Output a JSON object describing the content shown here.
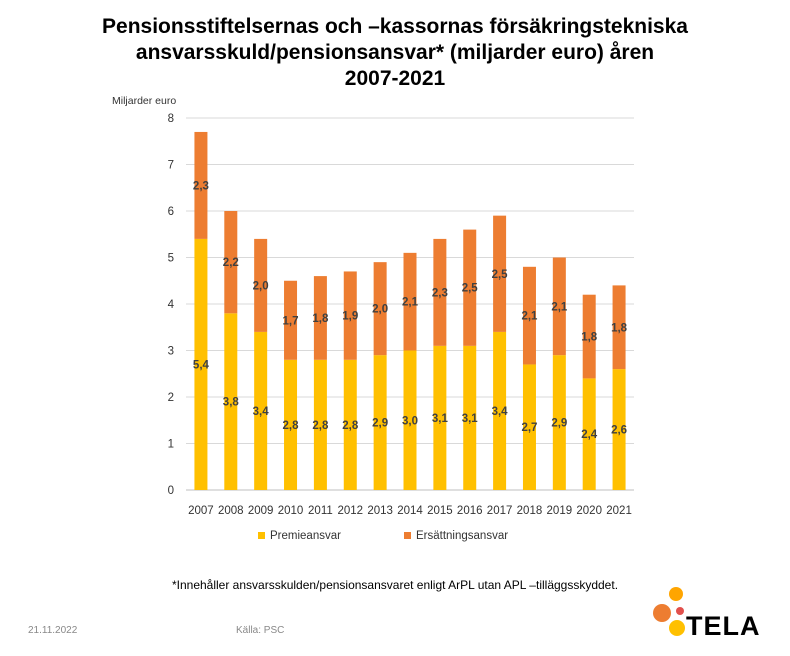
{
  "chart_data": {
    "type": "bar",
    "stacked": true,
    "title_lines": [
      "Pensionsstiftelsernas och –kassornas försäkringstekniska",
      "ansvarsskuld/pensionsansvar* (miljarder euro) åren",
      "2007-2021"
    ],
    "ylabel": "Miljarder euro",
    "categories": [
      "2007",
      "2008",
      "2009",
      "2010",
      "2011",
      "2012",
      "2013",
      "2014",
      "2015",
      "2016",
      "2017",
      "2018",
      "2019",
      "2020",
      "2021"
    ],
    "series": [
      {
        "name": "Premieansvar",
        "color": "#FFC000",
        "values": [
          5.4,
          3.8,
          3.4,
          2.8,
          2.8,
          2.8,
          2.9,
          3.0,
          3.1,
          3.1,
          3.4,
          2.7,
          2.9,
          2.4,
          2.6
        ],
        "labels": [
          "5,4",
          "3,8",
          "3,4",
          "2,8",
          "2,8",
          "2,8",
          "2,9",
          "3,0",
          "3,1",
          "3,1",
          "3,4",
          "2,7",
          "2,9",
          "2,4",
          "2,6"
        ]
      },
      {
        "name": "Ersättningsansvar",
        "color": "#ED7D31",
        "values": [
          2.3,
          2.2,
          2.0,
          1.7,
          1.8,
          1.9,
          2.0,
          2.1,
          2.3,
          2.5,
          2.5,
          2.1,
          2.1,
          1.8,
          1.8
        ],
        "labels": [
          "2,3",
          "2,2",
          "2,0",
          "1,7",
          "1,8",
          "1,9",
          "2,0",
          "2,1",
          "2,3",
          "2,5",
          "2,5",
          "2,1",
          "2,1",
          "1,8",
          "1,8"
        ]
      }
    ],
    "ylim": [
      0,
      8
    ],
    "yticks": [
      0,
      1,
      2,
      3,
      4,
      5,
      6,
      7,
      8
    ],
    "grid": true,
    "legend_position": "bottom"
  },
  "footnote": "*Innehåller ansvarsskulden/pensionsansvaret enligt ArPL utan APL –tilläggsskyddet.",
  "date": "21.11.2022",
  "source": "Källa: PSC",
  "logo": {
    "text": "TELA",
    "colors": [
      "#ED7D31",
      "#FFC000"
    ]
  }
}
